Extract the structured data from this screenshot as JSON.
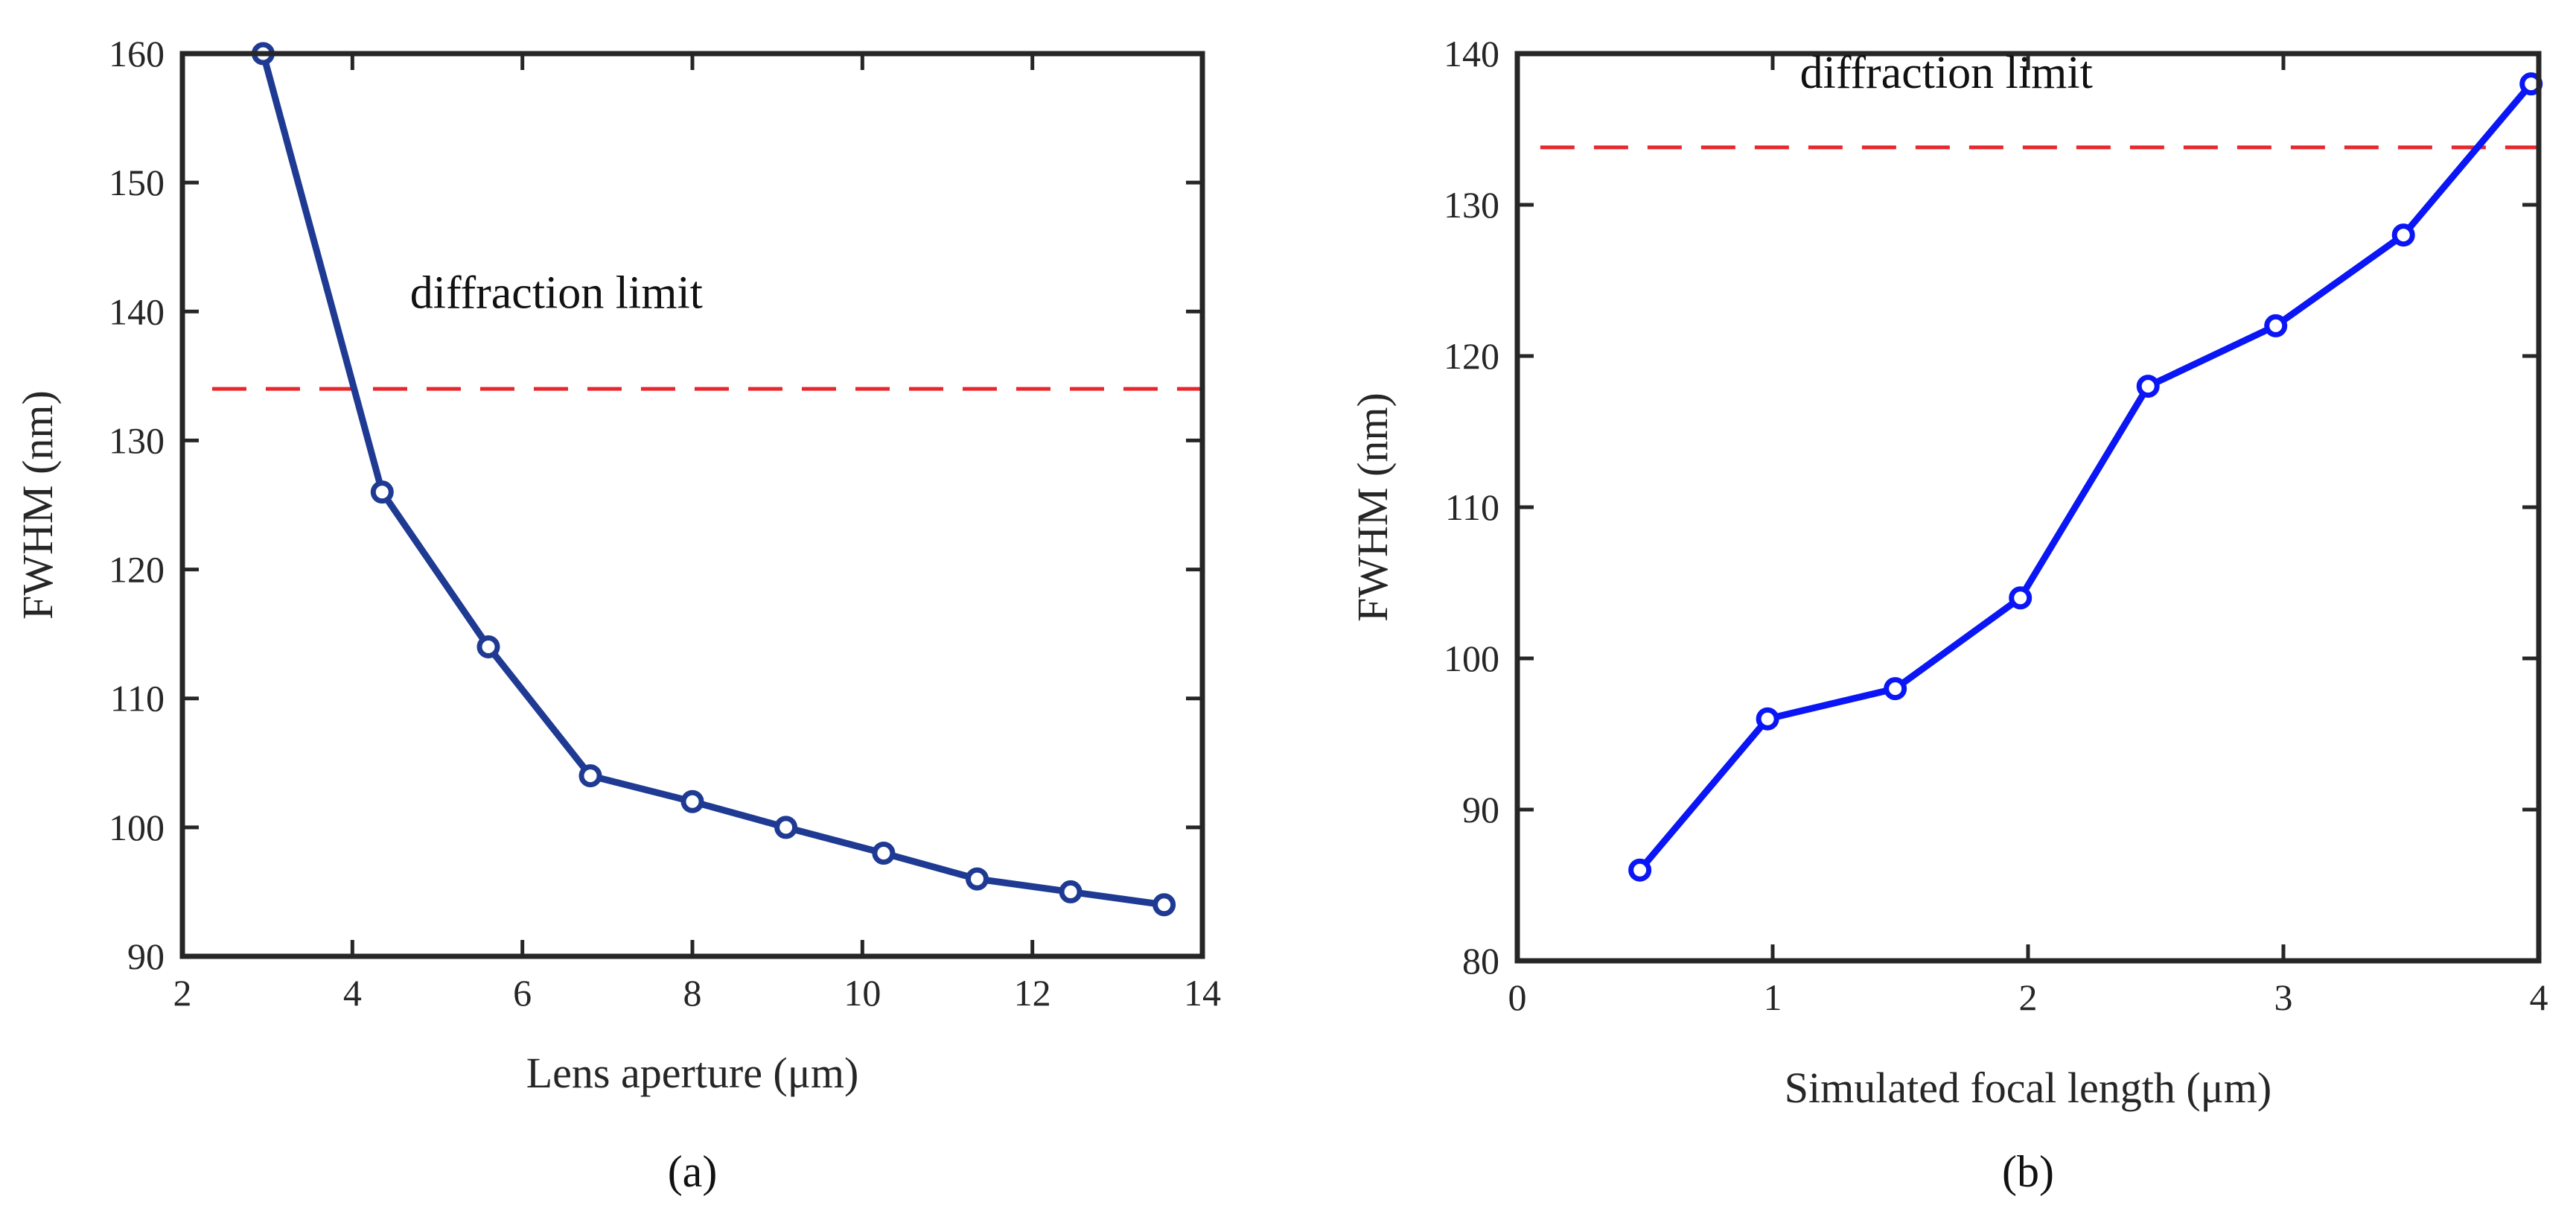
{
  "chart_data": [
    {
      "type": "line",
      "panel_label": "(a)",
      "title": "",
      "xlabel": "Lens aperture (μm)",
      "ylabel": "FWHM (nm)",
      "xlim": [
        2,
        14
      ],
      "ylim": [
        90,
        160
      ],
      "xticks": [
        2,
        4,
        6,
        8,
        10,
        12,
        14
      ],
      "yticks": [
        90,
        100,
        110,
        120,
        130,
        140,
        150,
        160
      ],
      "grid": false,
      "series": [
        {
          "name": "FWHM",
          "color": "#1F3A93",
          "marker": "circle",
          "x": [
            2.95,
            4.35,
            5.6,
            6.8,
            8.0,
            9.1,
            10.25,
            11.35,
            12.45,
            13.55
          ],
          "y": [
            160,
            126,
            114,
            104,
            102,
            100,
            98,
            96,
            95,
            94
          ]
        }
      ],
      "reference_line": {
        "y": 134,
        "x_start": 2.35,
        "x_end": 14,
        "color": "#E8262B",
        "style": "dashed"
      },
      "annotation": {
        "text": "diffraction limit",
        "x": 6.4,
        "y": 140
      }
    },
    {
      "type": "line",
      "panel_label": "(b)",
      "title": "",
      "xlabel": "Simulated focal length (μm)",
      "ylabel": "FWHM (nm)",
      "xlim": [
        0,
        4
      ],
      "ylim": [
        80,
        140
      ],
      "xticks": [
        0,
        1,
        2,
        3,
        4
      ],
      "yticks": [
        80,
        90,
        100,
        110,
        120,
        130,
        140
      ],
      "grid": false,
      "series": [
        {
          "name": "FWHM",
          "color": "#0A16F5",
          "marker": "circle",
          "x": [
            0.48,
            0.98,
            1.48,
            1.97,
            2.47,
            2.97,
            3.47,
            3.97
          ],
          "y": [
            86,
            96,
            98,
            104,
            118,
            122,
            128,
            138
          ]
        }
      ],
      "reference_line": {
        "y": 133.8,
        "x_start": 0.09,
        "x_end": 4,
        "color": "#E8262B",
        "style": "dashed"
      },
      "annotation": {
        "text": "diffraction limit",
        "x": 1.68,
        "y": 137.5
      }
    }
  ]
}
